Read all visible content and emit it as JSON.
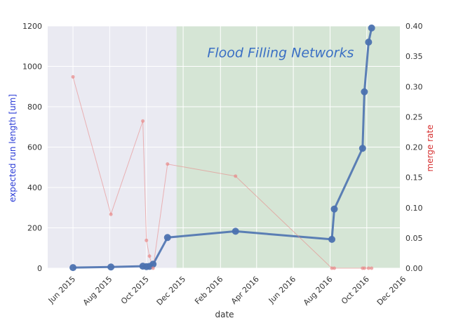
{
  "chart_data": {
    "type": "line",
    "title": "",
    "xlabel": "date",
    "ylabel": "expected run length [um]",
    "ylabel_right": "merge rate",
    "x_ticks": [
      "Jun 2015",
      "Aug 2015",
      "Oct 2015",
      "Dec 2015",
      "Feb 2016",
      "Apr 2016",
      "Jun 2016",
      "Aug 2016",
      "Oct 2016",
      "Dec 2016"
    ],
    "x_range": [
      "2015-04-20",
      "2016-11-25"
    ],
    "ylim": [
      0,
      1200
    ],
    "y_ticks": [
      "0",
      "200",
      "400",
      "600",
      "800",
      "1000",
      "1200"
    ],
    "ylim_right": [
      0,
      0.4
    ],
    "y_ticks_right": [
      "0.00",
      "0.05",
      "0.10",
      "0.15",
      "0.20",
      "0.25",
      "0.30",
      "0.35",
      "0.40"
    ],
    "grid": true,
    "regions": [
      {
        "from": "2015-11-20",
        "to": "2016-11-25",
        "color": "#d5e5d5"
      }
    ],
    "annotations": [
      {
        "text": "Flood Filling Networks",
        "x": "2016-01-10",
        "y": 1070,
        "color": "#3a6fc4"
      }
    ],
    "series": [
      {
        "axis": "left",
        "color": "#4c72b0",
        "x": [
          "2015-06-01",
          "2015-08-03",
          "2015-09-25",
          "2015-10-01",
          "2015-10-06",
          "2015-10-12",
          "2015-11-05",
          "2016-02-26",
          "2016-08-04",
          "2016-08-08",
          "2016-09-24",
          "2016-09-27",
          "2016-10-04",
          "2016-10-09"
        ],
        "y": [
          3,
          6,
          10,
          8,
          9,
          20,
          152,
          183,
          143,
          293,
          594,
          874,
          1120,
          1190
        ]
      },
      {
        "axis": "right",
        "color": "#e88989",
        "x": [
          "2015-06-01",
          "2015-08-03",
          "2015-09-25",
          "2015-10-01",
          "2015-10-06",
          "2015-10-12",
          "2015-11-05",
          "2016-02-26",
          "2016-08-04",
          "2016-08-08",
          "2016-09-24",
          "2016-09-27",
          "2016-10-04",
          "2016-10-09"
        ],
        "y": [
          0.316,
          0.089,
          0.243,
          0.046,
          0.02,
          0.0,
          0.172,
          0.152,
          0.0,
          0.0,
          0.0,
          0.0,
          0.0,
          0.0
        ]
      }
    ]
  }
}
